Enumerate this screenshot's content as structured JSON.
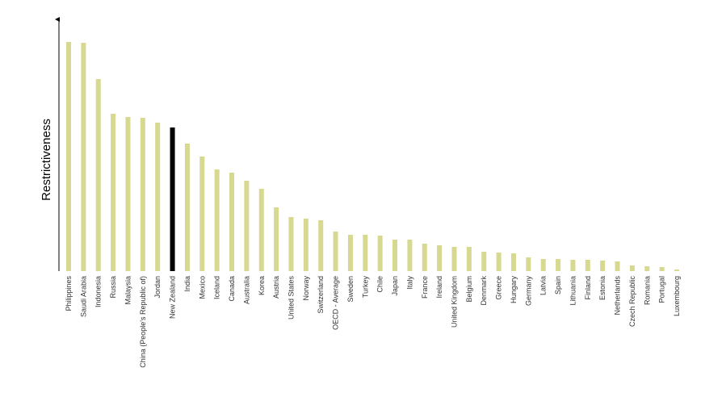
{
  "chart_data": {
    "type": "bar",
    "y_label": "Restrictiveness",
    "categories": [
      "Philippines",
      "Saudi Arabia",
      "Indonesia",
      "Russia",
      "Malaysia",
      "China (People's Republic of)",
      "Jordan",
      "New Zealand",
      "India",
      "Mexico",
      "Iceland",
      "Canada",
      "Australia",
      "Korea",
      "Austria",
      "United States",
      "Norway",
      "Switzerland",
      "OECD - Average",
      "Sweden",
      "Turkey",
      "Chile",
      "Japan",
      "Italy",
      "France",
      "Ireland",
      "United Kingdom",
      "Belgium",
      "Denmark",
      "Greece",
      "Hungary",
      "Germany",
      "Latvia",
      "Spain",
      "Lithuania",
      "Finland",
      "Estonia",
      "Netherlands",
      "Czech Republic",
      "Romania",
      "Portugal",
      "Luxembourg"
    ],
    "values": [
      284,
      283,
      238,
      195,
      191,
      190,
      184,
      178,
      158,
      142,
      126,
      122,
      112,
      102,
      79,
      67,
      65,
      63,
      49,
      45,
      45,
      44,
      39,
      39,
      34,
      32,
      30,
      30,
      24,
      23,
      22,
      17,
      15,
      15,
      14,
      14,
      13,
      12,
      7,
      6,
      5,
      2
    ],
    "colors": [
      "#d6d98f",
      "#d6d98f",
      "#d6d98f",
      "#d6d98f",
      "#d6d98f",
      "#d6d98f",
      "#d6d98f",
      "#000000",
      "#d6d98f",
      "#d6d98f",
      "#d6d98f",
      "#d6d98f",
      "#d6d98f",
      "#d6d98f",
      "#d6d98f",
      "#d6d98f",
      "#d6d98f",
      "#d6d98f",
      "#d6d98f",
      "#d6d98f",
      "#d6d98f",
      "#d6d98f",
      "#d6d98f",
      "#d6d98f",
      "#d6d98f",
      "#d6d98f",
      "#d6d98f",
      "#d6d98f",
      "#d6d98f",
      "#d6d98f",
      "#d6d98f",
      "#d6d98f",
      "#d6d98f",
      "#d6d98f",
      "#d6d98f",
      "#d6d98f",
      "#d6d98f",
      "#d6d98f",
      "#d6d98f",
      "#d6d98f",
      "#d6d98f",
      "#d6d98f"
    ],
    "ylim": [
      0,
      314
    ]
  }
}
